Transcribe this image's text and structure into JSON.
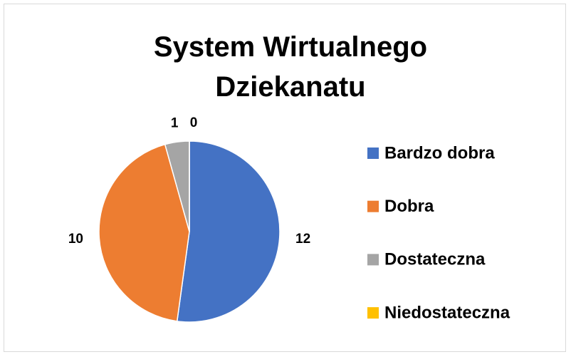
{
  "chart_data": {
    "type": "pie",
    "title": "System Wirtualnego Dziekanatu",
    "categories": [
      "Bardzo dobra",
      "Dobra",
      "Dostateczna",
      "Niedostateczna"
    ],
    "values": [
      12,
      10,
      1,
      0
    ],
    "colors": [
      "#4472c4",
      "#ed7d31",
      "#a5a5a5",
      "#ffc000"
    ],
    "legend": "right"
  }
}
